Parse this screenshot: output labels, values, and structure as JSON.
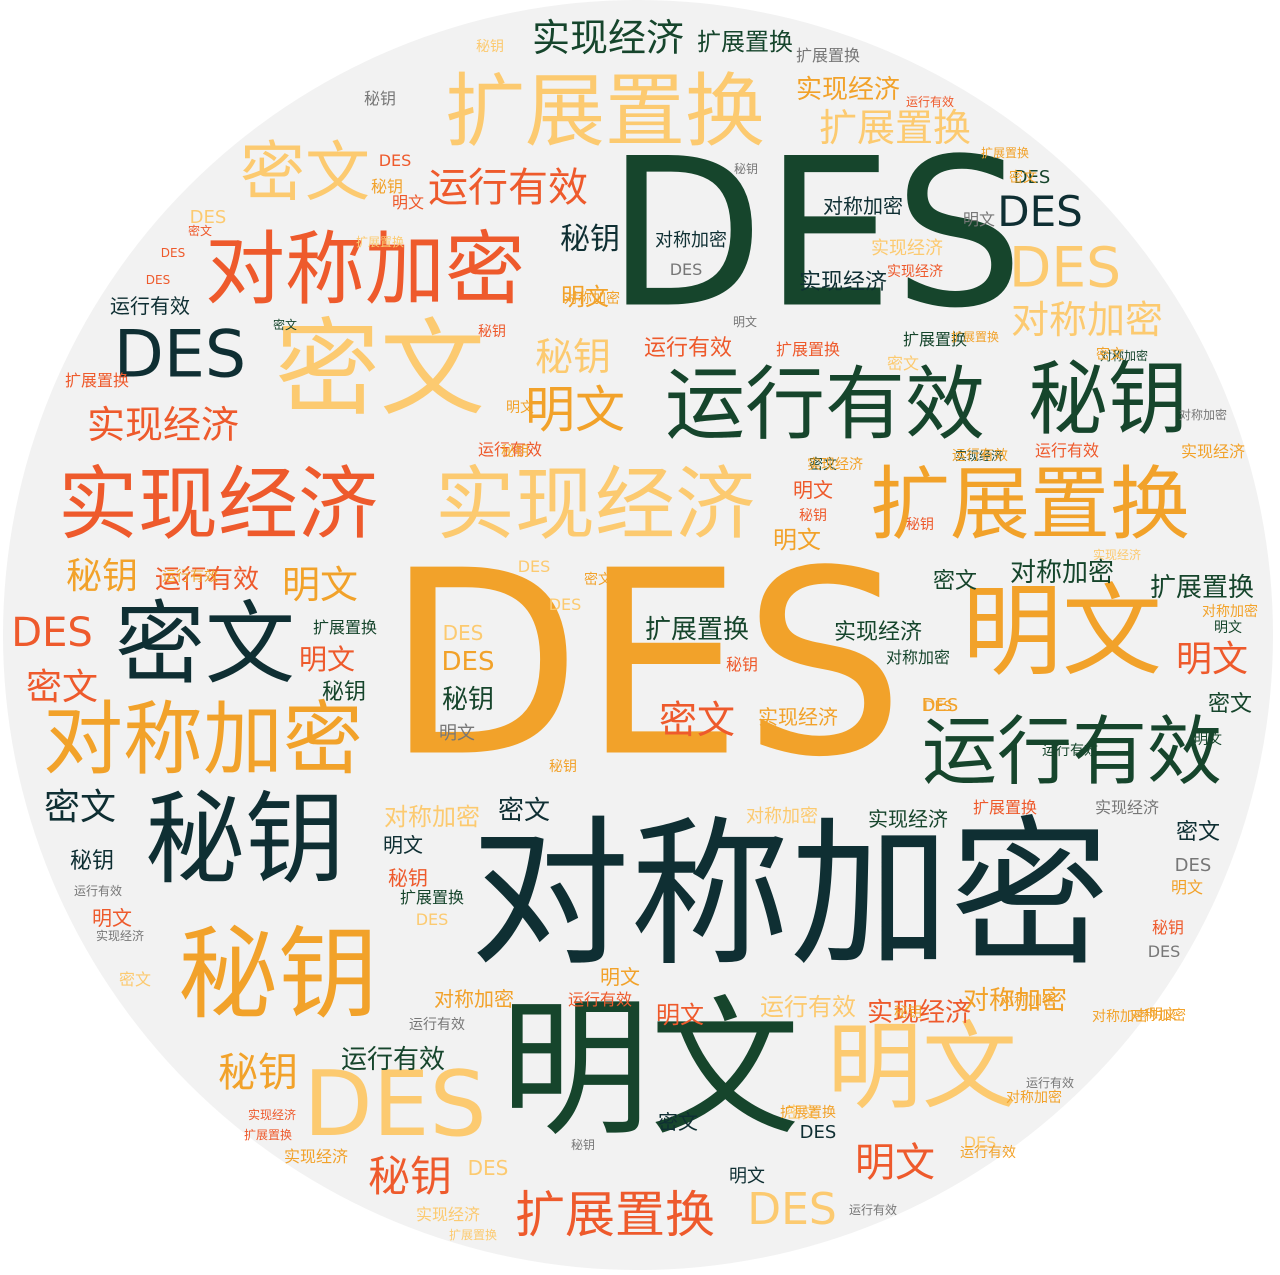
{
  "colors": {
    "background": "#f2f2f2",
    "dark_green": "#16452c",
    "dark_teal": "#0f2f33",
    "orange": "#f2a22a",
    "light_orange": "#fcca70",
    "red_orange": "#ee5a2c",
    "grey": "#777777"
  },
  "words": [
    {
      "text": "DES"
    },
    {
      "text": "DES"
    },
    {
      "text": "对称加密"
    },
    {
      "text": "明文"
    },
    {
      "text": "扩展置换"
    },
    {
      "text": "对称加密"
    },
    {
      "text": "密文"
    },
    {
      "text": "运行有效"
    },
    {
      "text": "秘钥"
    },
    {
      "text": "实现经济"
    },
    {
      "text": "实现经济"
    },
    {
      "text": "扩展置换"
    },
    {
      "text": "明文"
    },
    {
      "text": "密文"
    },
    {
      "text": "对称加密"
    },
    {
      "text": "运行有效"
    },
    {
      "text": "秘钥"
    },
    {
      "text": "秘钥"
    },
    {
      "text": "明文"
    },
    {
      "text": "DES"
    },
    {
      "text": "密文"
    },
    {
      "text": "运行有效"
    },
    {
      "text": "实现经济"
    },
    {
      "text": "扩展置换"
    },
    {
      "text": "DES"
    },
    {
      "text": "实现经济"
    },
    {
      "text": "扩展置换"
    },
    {
      "text": "DES"
    },
    {
      "text": "对称加密"
    },
    {
      "text": "实现经济"
    },
    {
      "text": "明文"
    },
    {
      "text": "秘钥"
    },
    {
      "text": "明文"
    },
    {
      "text": "DES"
    },
    {
      "text": "秘钥"
    },
    {
      "text": "明文"
    },
    {
      "text": "运行有效"
    },
    {
      "text": "DES"
    },
    {
      "text": "扩展置换"
    },
    {
      "text": "密文"
    },
    {
      "text": "扩展置换"
    },
    {
      "text": "明文"
    },
    {
      "text": "明文"
    },
    {
      "text": "DES"
    },
    {
      "text": "秘钥"
    },
    {
      "text": "运行有效"
    },
    {
      "text": "秘钥"
    },
    {
      "text": "对称加密"
    },
    {
      "text": "密文"
    },
    {
      "text": "实现经济"
    },
    {
      "text": "对称加密"
    },
    {
      "text": "实现经济"
    },
    {
      "text": "运行有效"
    },
    {
      "text": "明文"
    },
    {
      "text": "秘钥"
    },
    {
      "text": "DES"
    },
    {
      "text": "明文"
    },
    {
      "text": "扩展置换"
    },
    {
      "text": "密文"
    },
    {
      "text": "密文"
    },
    {
      "text": "秘钥"
    },
    {
      "text": "明文"
    },
    {
      "text": "DES"
    },
    {
      "text": "对称加密"
    },
    {
      "text": "明文"
    },
    {
      "text": "秘钥"
    },
    {
      "text": "DES"
    },
    {
      "text": "秘钥"
    },
    {
      "text": "明文"
    },
    {
      "text": "秘钥"
    },
    {
      "text": "秘钥"
    },
    {
      "text": "秘钥"
    },
    {
      "text": "DES"
    },
    {
      "text": "DES"
    },
    {
      "text": "DES"
    },
    {
      "text": "DES"
    },
    {
      "text": "扩展置换"
    },
    {
      "text": "扩展置换"
    },
    {
      "text": "扩展置换"
    },
    {
      "text": "对称加密"
    },
    {
      "text": "对称加密"
    },
    {
      "text": "实现经济"
    },
    {
      "text": "实现经济"
    },
    {
      "text": "实现经济"
    },
    {
      "text": "运行有效"
    },
    {
      "text": "运行有效"
    },
    {
      "text": "密文"
    },
    {
      "text": "密文"
    },
    {
      "text": "密文"
    },
    {
      "text": "密文"
    },
    {
      "text": "明文"
    },
    {
      "text": "明文"
    },
    {
      "text": "明文"
    },
    {
      "text": "明文"
    },
    {
      "text": "DES"
    },
    {
      "text": "DES"
    },
    {
      "text": "秘钥"
    },
    {
      "text": "秘钥"
    },
    {
      "text": "秘钥"
    },
    {
      "text": "对称加密"
    },
    {
      "text": "对称加密"
    },
    {
      "text": "运行有效"
    },
    {
      "text": "运行有效"
    },
    {
      "text": "实现经济"
    },
    {
      "text": "实现经济"
    },
    {
      "text": "扩展置换"
    },
    {
      "text": "扩展置换"
    },
    {
      "text": "密文"
    },
    {
      "text": "密文"
    },
    {
      "text": "密文"
    },
    {
      "text": "DES"
    },
    {
      "text": "DES"
    },
    {
      "text": "DES"
    },
    {
      "text": "明文"
    },
    {
      "text": "明文"
    },
    {
      "text": "秘钥"
    },
    {
      "text": "秘钥"
    },
    {
      "text": "秘钥"
    },
    {
      "text": "实现经济"
    },
    {
      "text": "实现经济"
    },
    {
      "text": "实现经济"
    },
    {
      "text": "运行有效"
    },
    {
      "text": "运行有效"
    },
    {
      "text": "运行有效"
    },
    {
      "text": "运行有效"
    },
    {
      "text": "扩展置换"
    },
    {
      "text": "扩展置换"
    },
    {
      "text": "扩展置换"
    },
    {
      "text": "扩展置换"
    },
    {
      "text": "对称加密"
    },
    {
      "text": "对称加密"
    },
    {
      "text": "对称加密"
    },
    {
      "text": "对称加密"
    },
    {
      "text": "对称加密"
    },
    {
      "text": "密文"
    },
    {
      "text": "密文"
    },
    {
      "text": "密文"
    },
    {
      "text": "密文"
    },
    {
      "text": "明文"
    },
    {
      "text": "明文"
    },
    {
      "text": "明文"
    },
    {
      "text": "DES"
    },
    {
      "text": "DES"
    },
    {
      "text": "DES"
    },
    {
      "text": "秘钥"
    },
    {
      "text": "秘钥"
    },
    {
      "text": "实现经济"
    },
    {
      "text": "实现经济"
    },
    {
      "text": "实现经济"
    },
    {
      "text": "运行有效"
    },
    {
      "text": "运行有效"
    },
    {
      "text": "运行有效"
    },
    {
      "text": "扩展置换"
    },
    {
      "text": "扩展置换"
    },
    {
      "text": "扩展置换"
    },
    {
      "text": "对称加密"
    },
    {
      "text": "对称加密"
    },
    {
      "text": "对称加密"
    },
    {
      "text": "明文"
    },
    {
      "text": "明文"
    },
    {
      "text": "DES"
    },
    {
      "text": "DES"
    },
    {
      "text": "秘钥"
    },
    {
      "text": "秘钥"
    },
    {
      "text": "实现经济"
    },
    {
      "text": "实现经济"
    },
    {
      "text": "运行有效"
    },
    {
      "text": "运行有效"
    },
    {
      "text": "扩展置换"
    },
    {
      "text": "对称加密"
    },
    {
      "text": "密文"
    },
    {
      "text": "密文"
    },
    {
      "text": "明文"
    },
    {
      "text": "DES"
    },
    {
      "text": "秘钥"
    },
    {
      "text": "实现经济"
    },
    {
      "text": "运行有效"
    },
    {
      "text": "扩展置换"
    },
    {
      "text": "对称加密"
    },
    {
      "text": "密文"
    },
    {
      "text": "明文"
    },
    {
      "text": "DES"
    },
    {
      "text": "DES"
    },
    {
      "text": "扩展置换"
    },
    {
      "text": "实现经济"
    },
    {
      "text": "运行有效"
    }
  ]
}
